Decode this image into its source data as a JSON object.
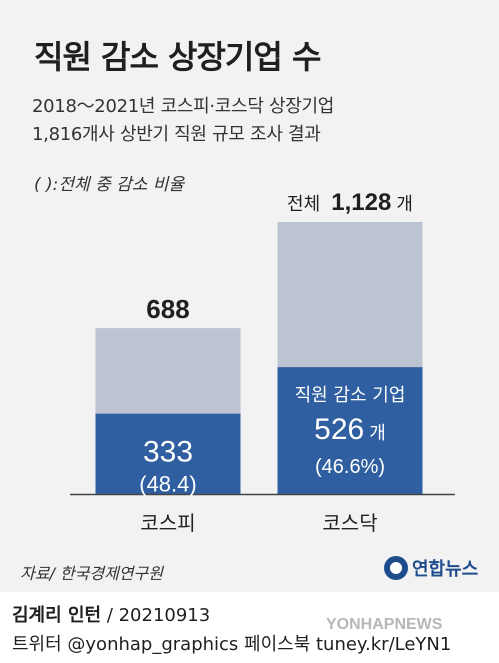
{
  "header": {
    "title": "직원 감소 상장기업 수",
    "subtitle_line1": "2018～2021년 코스피·코스닥 상장기업",
    "subtitle_line2": "1,816개사 상반기 직원 규모 조사 결과",
    "note": "( ):전체 중 감소 비율"
  },
  "chart_data": {
    "type": "bar",
    "title": "직원 감소 상장기업 수",
    "categories": [
      "코스피",
      "코스닥"
    ],
    "series": [
      {
        "name": "전체",
        "values": [
          688,
          1128
        ]
      },
      {
        "name": "직원 감소 기업",
        "values": [
          333,
          526
        ]
      }
    ],
    "decrease_ratio_pct": [
      48.4,
      46.6
    ],
    "labels": {
      "total_kospi": "688",
      "total_kosdaq_prefix": "전체",
      "total_kosdaq_value": "1,128",
      "total_kosdaq_unit": "개",
      "decrease_kospi": "333",
      "decrease_kospi_pct": "(48.4)",
      "decrease_kosdaq_legend": "직원 감소 기업",
      "decrease_kosdaq_value": "526",
      "decrease_kosdaq_unit": "개",
      "decrease_kosdaq_pct": "(46.6%)"
    },
    "ylim": [
      0,
      1128
    ],
    "colors": {
      "total": "#bcc3d2",
      "decrease": "#2f5fa0",
      "axis": "#444444"
    }
  },
  "footer": {
    "source": "자료/ 한국경제연구원",
    "logo_text": "연합뉴스",
    "author": "김계리 인턴",
    "date": "/ 20210913",
    "social": "트위터 @yonhap_graphics  페이스북 tuney.kr/LeYN1",
    "watermark": "YONHAPNEWS"
  }
}
